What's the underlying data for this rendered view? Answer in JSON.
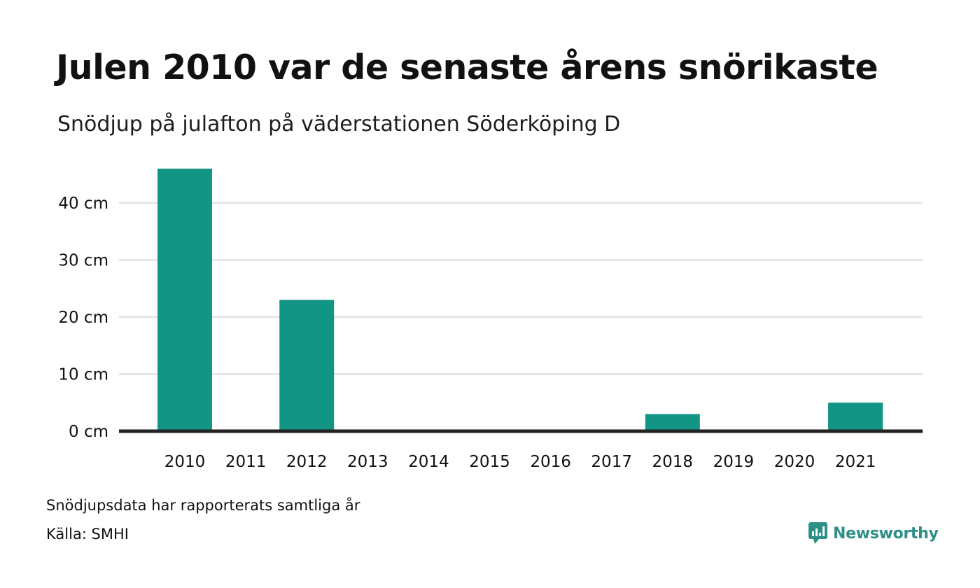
{
  "title": "Julen 2010 var de senaste årens snörikaste",
  "subtitle": "Snödjup på julafton på väderstationen Söderköping D",
  "footer": {
    "note": "Snödjupsdata har rapporterats samtliga år",
    "source": "Källa: SMHI",
    "brand": "Newsworthy",
    "brand_icon": "newsworthy-logo-icon"
  },
  "colors": {
    "bar": "#139585",
    "grid": "#e2e2e2",
    "axis": "#222222",
    "brand": "#2e8f86"
  },
  "chart_data": {
    "type": "bar",
    "categories": [
      "2010",
      "2011",
      "2012",
      "2013",
      "2014",
      "2015",
      "2016",
      "2017",
      "2018",
      "2019",
      "2020",
      "2021"
    ],
    "values": [
      46,
      0,
      23,
      0,
      0,
      0,
      0,
      0,
      3,
      0,
      0,
      5
    ],
    "yticks": [
      0,
      10,
      20,
      30,
      40
    ],
    "ytick_labels": [
      "0 cm",
      "10 cm",
      "20 cm",
      "30 cm",
      "40 cm"
    ],
    "ylim": [
      0,
      46
    ],
    "grid": true,
    "legend": false
  }
}
